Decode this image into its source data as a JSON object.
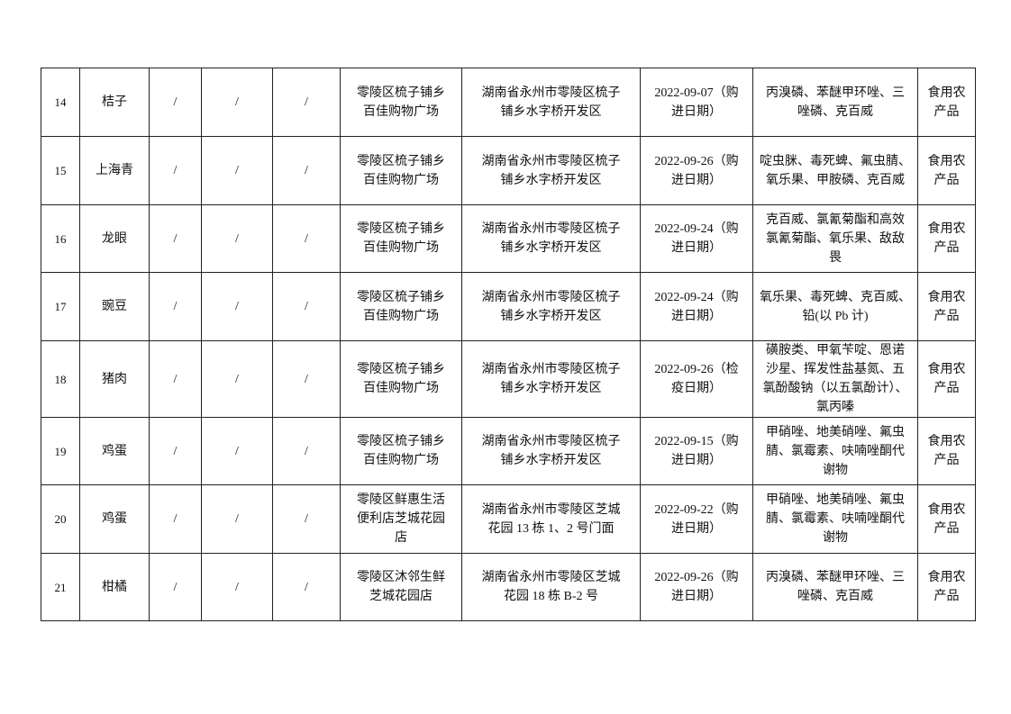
{
  "rows": [
    {
      "no": "14",
      "item": "桔子",
      "c3": "/",
      "c4": "/",
      "c5": "/",
      "seller": "零陵区梳子铺乡\n百佳购物广场",
      "address": "湖南省永州市零陵区梳子\n铺乡水字桥开发区",
      "date": "2022-09-07（购\n进日期）",
      "tests": "丙溴磷、苯醚甲环唑、三\n唑磷、克百威",
      "category": "食用农\n产品"
    },
    {
      "no": "15",
      "item": "上海青",
      "c3": "/",
      "c4": "/",
      "c5": "/",
      "seller": "零陵区梳子铺乡\n百佳购物广场",
      "address": "湖南省永州市零陵区梳子\n铺乡水字桥开发区",
      "date": "2022-09-26（购\n进日期）",
      "tests": "啶虫脒、毒死蜱、氟虫腈、\n氧乐果、甲胺磷、克百威",
      "category": "食用农\n产品"
    },
    {
      "no": "16",
      "item": "龙眼",
      "c3": "/",
      "c4": "/",
      "c5": "/",
      "seller": "零陵区梳子铺乡\n百佳购物广场",
      "address": "湖南省永州市零陵区梳子\n铺乡水字桥开发区",
      "date": "2022-09-24（购\n进日期）",
      "tests": "克百威、氯氰菊酯和高效\n氯氰菊酯、氧乐果、敌敌\n畏",
      "category": "食用农\n产品"
    },
    {
      "no": "17",
      "item": "豌豆",
      "c3": "/",
      "c4": "/",
      "c5": "/",
      "seller": "零陵区梳子铺乡\n百佳购物广场",
      "address": "湖南省永州市零陵区梳子\n铺乡水字桥开发区",
      "date": "2022-09-24（购\n进日期）",
      "tests": "氧乐果、毒死蜱、克百威、\n铅(以 Pb 计)",
      "category": "食用农\n产品"
    },
    {
      "no": "18",
      "item": "猪肉",
      "c3": "/",
      "c4": "/",
      "c5": "/",
      "seller": "零陵区梳子铺乡\n百佳购物广场",
      "address": "湖南省永州市零陵区梳子\n铺乡水字桥开发区",
      "date": "2022-09-26（检\n疫日期）",
      "tests": "磺胺类、甲氧苄啶、恩诺\n沙星、挥发性盐基氮、五\n氯酚酸钠（以五氯酚计）、\n氯丙嗪",
      "category": "食用农\n产品"
    },
    {
      "no": "19",
      "item": "鸡蛋",
      "c3": "/",
      "c4": "/",
      "c5": "/",
      "seller": "零陵区梳子铺乡\n百佳购物广场",
      "address": "湖南省永州市零陵区梳子\n铺乡水字桥开发区",
      "date": "2022-09-15（购\n进日期）",
      "tests": "甲硝唑、地美硝唑、氟虫\n腈、氯霉素、呋喃唑酮代\n谢物",
      "category": "食用农\n产品"
    },
    {
      "no": "20",
      "item": "鸡蛋",
      "c3": "/",
      "c4": "/",
      "c5": "/",
      "seller": "零陵区鲜惠生活\n便利店芝城花园\n店",
      "address": "湖南省永州市零陵区芝城\n花园 13 栋 1、2 号门面",
      "date": "2022-09-22（购\n进日期）",
      "tests": "甲硝唑、地美硝唑、氟虫\n腈、氯霉素、呋喃唑酮代\n谢物",
      "category": "食用农\n产品"
    },
    {
      "no": "21",
      "item": "柑橘",
      "c3": "/",
      "c4": "/",
      "c5": "/",
      "seller": "零陵区沐邻生鲜\n芝城花园店",
      "address": "湖南省永州市零陵区芝城\n花园 18 栋 B-2 号",
      "date": "2022-09-26（购\n进日期）",
      "tests": "丙溴磷、苯醚甲环唑、三\n唑磷、克百威",
      "category": "食用农\n产品"
    }
  ]
}
